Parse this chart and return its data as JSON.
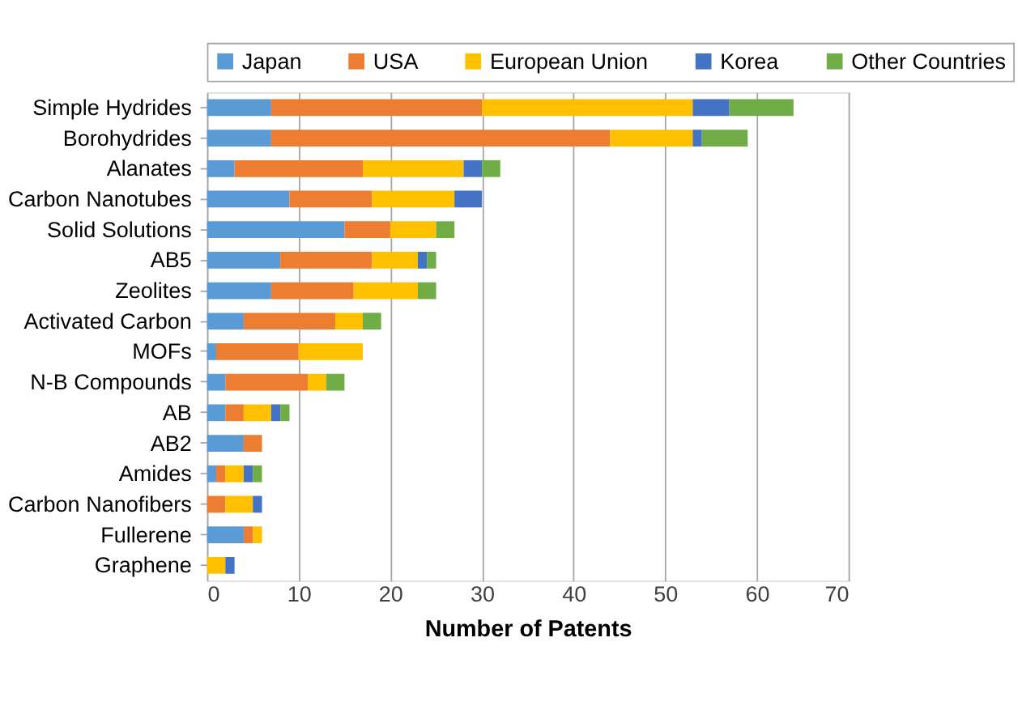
{
  "chart_data": {
    "type": "bar",
    "orientation": "horizontal",
    "stacked": true,
    "xlabel": "Number of Patents",
    "categories": [
      "Simple Hydrides",
      "Borohydrides",
      "Alanates",
      "Carbon Nanotubes",
      "Solid Solutions",
      "AB5",
      "Zeolites",
      "Activated Carbon",
      "MOFs",
      "N-B Compounds",
      "AB",
      "AB2",
      "Amides",
      "Carbon Nanofibers",
      "Fullerene",
      "Graphene"
    ],
    "series": [
      {
        "name": "Japan",
        "color": "#5b9bd5",
        "values": [
          7,
          7,
          3,
          9,
          15,
          8,
          7,
          4,
          1,
          2,
          2,
          4,
          1,
          0,
          4,
          0
        ]
      },
      {
        "name": "USA",
        "color": "#ed7d31",
        "values": [
          23,
          37,
          14,
          9,
          5,
          10,
          9,
          10,
          9,
          9,
          2,
          2,
          1,
          2,
          1,
          0
        ]
      },
      {
        "name": "European Union",
        "color": "#ffc000",
        "values": [
          23,
          9,
          11,
          9,
          5,
          5,
          7,
          3,
          7,
          2,
          3,
          0,
          2,
          3,
          1,
          2
        ]
      },
      {
        "name": "Korea",
        "color": "#4472c4",
        "values": [
          4,
          1,
          2,
          3,
          0,
          1,
          0,
          0,
          0,
          0,
          1,
          0,
          1,
          1,
          0,
          1
        ]
      },
      {
        "name": "Other Countries",
        "color": "#70ad47",
        "values": [
          7,
          5,
          2,
          0,
          2,
          1,
          2,
          2,
          0,
          2,
          1,
          0,
          1,
          0,
          0,
          0
        ]
      }
    ],
    "xlim": [
      0,
      70
    ],
    "xticks": [
      0,
      10,
      20,
      30,
      40,
      50,
      60,
      70
    ],
    "grid": "x",
    "legend": "top"
  }
}
